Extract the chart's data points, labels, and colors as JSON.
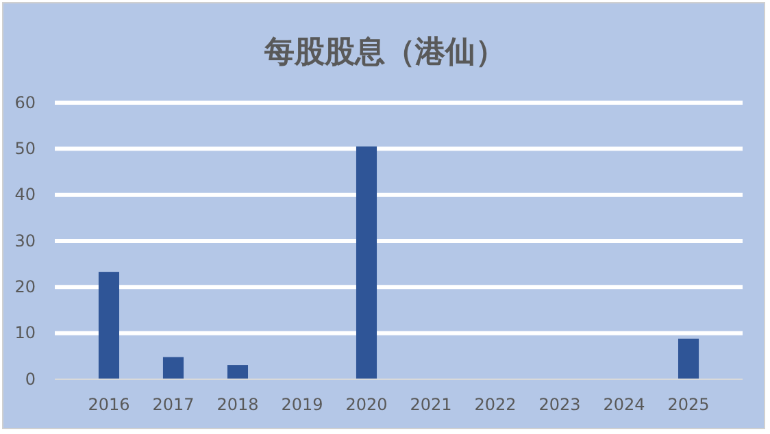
{
  "chart_data": {
    "type": "bar",
    "title": "每股股息（港仙）",
    "categories": [
      "2016",
      "2017",
      "2018",
      "2019",
      "2020",
      "2021",
      "2022",
      "2023",
      "2024",
      "2025"
    ],
    "values": [
      23.3,
      4.8,
      3.1,
      0,
      50.5,
      0,
      0,
      0,
      0,
      8.8
    ],
    "color": "#2f5597",
    "ylim": [
      0,
      60
    ],
    "yticks": [
      0,
      10,
      20,
      30,
      40,
      50,
      60
    ],
    "grid": "y"
  }
}
